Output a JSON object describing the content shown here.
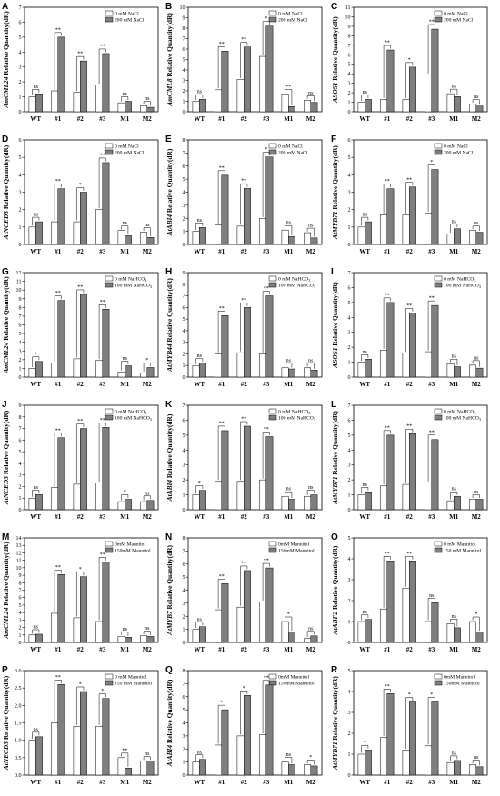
{
  "colors": {
    "control": "#ffffff",
    "treatment": "#7f7f7f",
    "axis": "#000000"
  },
  "categories": [
    "WT",
    "#1",
    "#2",
    "#3",
    "M1",
    "M2"
  ],
  "y_unit_label": "Relative Quantity(dR)",
  "chart_data": [
    {
      "panel": "A",
      "type": "bar",
      "gene": "AmCML24",
      "ylim": [
        0,
        7
      ],
      "yticks": [
        0,
        1,
        2,
        3,
        4,
        5,
        6,
        7
      ],
      "categories": [
        "WT",
        "#1",
        "#2",
        "#3",
        "M1",
        "M2"
      ],
      "series": [
        {
          "name": "0 mM NaCl",
          "values": [
            1.0,
            1.4,
            1.3,
            1.8,
            0.6,
            0.4
          ]
        },
        {
          "name": "200 mM NaCl",
          "values": [
            1.2,
            5.0,
            3.4,
            3.9,
            0.7,
            0.3
          ]
        }
      ],
      "significance": [
        "ns",
        "**",
        "**",
        "**",
        "ns",
        "ns"
      ]
    },
    {
      "panel": "B",
      "type": "bar",
      "gene": "AmCML8",
      "ylim": [
        0,
        10
      ],
      "yticks": [
        0,
        1,
        2,
        3,
        4,
        5,
        6,
        7,
        8,
        9,
        10
      ],
      "categories": [
        "WT",
        "#1",
        "#2",
        "#3",
        "M1",
        "M2"
      ],
      "series": [
        {
          "name": "0 mM NaCl",
          "values": [
            1.0,
            2.1,
            3.1,
            5.3,
            1.7,
            1.1
          ]
        },
        {
          "name": "200 mM NaCl",
          "values": [
            1.2,
            5.8,
            6.2,
            8.2,
            0.5,
            0.9
          ]
        }
      ],
      "significance": [
        "ns",
        "**",
        "**",
        "*",
        "**",
        "ns"
      ]
    },
    {
      "panel": "C",
      "type": "bar",
      "gene": "ASOS1",
      "ylim": [
        0,
        11
      ],
      "yticks": [
        0,
        1,
        2,
        3,
        4,
        5,
        6,
        7,
        8,
        9,
        10,
        11
      ],
      "categories": [
        "WT",
        "#1",
        "#2",
        "#3",
        "M1",
        "M2"
      ],
      "series": [
        {
          "name": "0 mM NaCl",
          "values": [
            1.0,
            1.3,
            1.3,
            3.9,
            1.9,
            0.8
          ]
        },
        {
          "name": "200 mM NaCl",
          "values": [
            1.3,
            6.5,
            4.7,
            8.7,
            1.6,
            0.6
          ]
        }
      ],
      "significance": [
        "ns",
        "**",
        "*",
        "**",
        "ns",
        "ns"
      ]
    },
    {
      "panel": "D",
      "type": "bar",
      "gene": "AtNCED3",
      "ylim": [
        0,
        6
      ],
      "yticks": [
        0,
        1,
        2,
        3,
        4,
        5,
        6
      ],
      "categories": [
        "WT",
        "#1",
        "#2",
        "#3",
        "M1",
        "M2"
      ],
      "series": [
        {
          "name": "0 mM NaCl",
          "values": [
            1.0,
            1.3,
            1.3,
            2.0,
            0.8,
            0.7
          ]
        },
        {
          "name": "200 mM NaCl",
          "values": [
            1.3,
            3.2,
            3.0,
            4.7,
            0.5,
            0.4
          ]
        }
      ],
      "significance": [
        "ns",
        "**",
        "*",
        "**",
        "ns",
        "ns"
      ]
    },
    {
      "panel": "E",
      "type": "bar",
      "gene": "AtABI4",
      "ylim": [
        0,
        8
      ],
      "yticks": [
        0,
        1,
        2,
        3,
        4,
        5,
        6,
        7,
        8
      ],
      "categories": [
        "WT",
        "#1",
        "#2",
        "#3",
        "M1",
        "M2"
      ],
      "series": [
        {
          "name": "0 mM NaCl",
          "values": [
            1.0,
            1.5,
            1.4,
            2.0,
            1.1,
            0.9
          ]
        },
        {
          "name": "200 mM NaCl",
          "values": [
            1.3,
            5.3,
            4.3,
            6.7,
            0.6,
            0.5
          ]
        }
      ],
      "significance": [
        "ns",
        "**",
        "**",
        "*",
        "ns",
        "ns"
      ]
    },
    {
      "panel": "F",
      "type": "bar",
      "gene": "AtMYB71",
      "ylim": [
        0,
        6
      ],
      "yticks": [
        0,
        1,
        2,
        3,
        4,
        5,
        6
      ],
      "categories": [
        "WT",
        "#1",
        "#2",
        "#3",
        "M1",
        "M2"
      ],
      "series": [
        {
          "name": "0 mM NaCl",
          "values": [
            1.0,
            1.7,
            1.7,
            1.8,
            0.6,
            0.8
          ]
        },
        {
          "name": "200 mM NaCl",
          "values": [
            1.3,
            3.2,
            3.3,
            4.3,
            0.9,
            0.7
          ]
        }
      ],
      "significance": [
        "ns",
        "**",
        "**",
        "*",
        "ns",
        "ns"
      ]
    },
    {
      "panel": "G",
      "type": "bar",
      "gene": "AmCML24",
      "ylim": [
        0,
        12
      ],
      "yticks": [
        0,
        1,
        2,
        3,
        4,
        5,
        6,
        7,
        8,
        9,
        10,
        11,
        12
      ],
      "categories": [
        "WT",
        "#1",
        "#2",
        "#3",
        "M1",
        "M2"
      ],
      "series": [
        {
          "name": "0 mM NaHCO3",
          "values": [
            1.0,
            1.6,
            2.1,
            1.9,
            0.6,
            0.5
          ]
        },
        {
          "name": "100 mM NaHCO3",
          "values": [
            1.8,
            8.8,
            9.5,
            7.8,
            1.3,
            1.1
          ]
        }
      ],
      "significance": [
        "*",
        "**",
        "**",
        "**",
        "ns",
        "*"
      ]
    },
    {
      "panel": "H",
      "type": "bar",
      "gene": "AtMYB44",
      "ylim": [
        0,
        9
      ],
      "yticks": [
        0,
        1,
        2,
        3,
        4,
        5,
        6,
        7,
        8,
        9
      ],
      "categories": [
        "WT",
        "#1",
        "#2",
        "#3",
        "M1",
        "M2"
      ],
      "series": [
        {
          "name": "0 mM NaHCO3",
          "values": [
            1.0,
            2.0,
            2.1,
            2.0,
            0.8,
            0.8
          ]
        },
        {
          "name": "100 mM NaHCO3",
          "values": [
            1.2,
            5.3,
            6.0,
            7.0,
            0.7,
            0.6
          ]
        }
      ],
      "significance": [
        "ns",
        "**",
        "**",
        "**",
        "ns",
        "ns"
      ]
    },
    {
      "panel": "I",
      "type": "bar",
      "gene": "ASOS1",
      "ylim": [
        0,
        7
      ],
      "yticks": [
        0,
        1,
        2,
        3,
        4,
        5,
        6,
        7
      ],
      "categories": [
        "WT",
        "#1",
        "#2",
        "#3",
        "M1",
        "M2"
      ],
      "series": [
        {
          "name": "0 mM NaHCO3",
          "values": [
            1.0,
            1.8,
            1.6,
            1.7,
            0.9,
            0.8
          ]
        },
        {
          "name": "100 mM NaHCO3",
          "values": [
            1.2,
            5.0,
            4.3,
            4.8,
            0.7,
            0.6
          ]
        }
      ],
      "significance": [
        "ns",
        "**",
        "**",
        "**",
        "ns",
        "ns"
      ]
    },
    {
      "panel": "J",
      "type": "bar",
      "gene": "AtNCED3",
      "ylim": [
        0,
        9
      ],
      "yticks": [
        0,
        1,
        2,
        3,
        4,
        5,
        6,
        7,
        8,
        9
      ],
      "categories": [
        "WT",
        "#1",
        "#2",
        "#3",
        "M1",
        "M2"
      ],
      "series": [
        {
          "name": "0 mM NaHCO3",
          "values": [
            1.0,
            1.9,
            2.2,
            2.3,
            0.7,
            0.7
          ]
        },
        {
          "name": "100 mM NaHCO3",
          "values": [
            1.3,
            6.2,
            7.0,
            7.1,
            0.9,
            0.8
          ]
        }
      ],
      "significance": [
        "ns",
        "**",
        "**",
        "**",
        "*",
        "ns"
      ]
    },
    {
      "panel": "K",
      "type": "bar",
      "gene": "AtABI4",
      "ylim": [
        0,
        7
      ],
      "yticks": [
        0,
        1,
        2,
        3,
        4,
        5,
        6,
        7
      ],
      "categories": [
        "WT",
        "#1",
        "#2",
        "#3",
        "M1",
        "M2"
      ],
      "series": [
        {
          "name": "0 mM NaHCO3",
          "values": [
            1.0,
            1.9,
            1.9,
            2.0,
            0.9,
            0.9
          ]
        },
        {
          "name": "100 mM NaHCO3",
          "values": [
            1.3,
            5.3,
            5.6,
            4.9,
            0.7,
            1.0
          ]
        }
      ],
      "significance": [
        "*",
        "**",
        "**",
        "**",
        "ns",
        "ns"
      ]
    },
    {
      "panel": "L",
      "type": "bar",
      "gene": "AtMYB71",
      "ylim": [
        0,
        7
      ],
      "yticks": [
        0,
        1,
        2,
        3,
        4,
        5,
        6,
        7
      ],
      "categories": [
        "WT",
        "#1",
        "#2",
        "#3",
        "M1",
        "M2"
      ],
      "series": [
        {
          "name": "0 mM NaHCO3",
          "values": [
            1.0,
            1.6,
            1.7,
            1.8,
            0.6,
            0.7
          ]
        },
        {
          "name": "100 mM NaHCO3",
          "values": [
            1.2,
            5.0,
            5.1,
            4.7,
            0.9,
            0.7
          ]
        }
      ],
      "significance": [
        "ns",
        "**",
        "**",
        "**",
        "ns",
        "ns"
      ]
    },
    {
      "panel": "M",
      "type": "bar",
      "gene": "AmCML24",
      "ylim": [
        0,
        14
      ],
      "yticks": [
        0,
        1,
        2,
        3,
        4,
        5,
        6,
        7,
        8,
        9,
        10,
        11,
        12,
        13,
        14
      ],
      "categories": [
        "WT",
        "#1",
        "#2",
        "#3",
        "M1",
        "M2"
      ],
      "series": [
        {
          "name": "0mM Mannitol",
          "values": [
            1.0,
            3.9,
            3.3,
            2.8,
            0.8,
            0.9
          ]
        },
        {
          "name": "150mM Mannitol",
          "values": [
            1.1,
            9.1,
            8.8,
            10.8,
            0.7,
            0.8
          ]
        }
      ],
      "significance": [
        "ns",
        "**",
        "*",
        "**",
        "ns",
        "ns"
      ]
    },
    {
      "panel": "N",
      "type": "bar",
      "gene": "AtMYB7",
      "ylim": [
        0,
        8
      ],
      "yticks": [
        0,
        1,
        2,
        3,
        4,
        5,
        6,
        7,
        8
      ],
      "categories": [
        "WT",
        "#1",
        "#2",
        "#3",
        "M1",
        "M2"
      ],
      "series": [
        {
          "name": "0mM Mannitol",
          "values": [
            1.0,
            2.5,
            2.7,
            3.1,
            1.6,
            0.3
          ]
        },
        {
          "name": "150mM Mannitol",
          "values": [
            1.2,
            4.5,
            5.5,
            5.7,
            0.8,
            0.5
          ]
        }
      ],
      "significance": [
        "ns",
        "**",
        "**",
        "**",
        "*",
        "ns"
      ]
    },
    {
      "panel": "O",
      "type": "bar",
      "gene": "AtABF2",
      "ylim": [
        0,
        5
      ],
      "yticks": [
        0,
        1,
        2,
        3,
        4,
        5
      ],
      "categories": [
        "WT",
        "#1",
        "#2",
        "#3",
        "M1",
        "M2"
      ],
      "series": [
        {
          "name": "0 mM Mannitol",
          "values": [
            1.0,
            1.6,
            2.6,
            1.0,
            0.9,
            1.0
          ]
        },
        {
          "name": "150 mM Mannitol",
          "values": [
            1.1,
            3.9,
            3.9,
            1.9,
            0.7,
            0.5
          ]
        }
      ],
      "significance": [
        "ns",
        "**",
        "**",
        "ns",
        "ns",
        "*"
      ]
    },
    {
      "panel": "P",
      "type": "bar",
      "gene": "AtNECD3",
      "ylim": [
        0,
        3
      ],
      "yticks": [
        0.0,
        0.5,
        1.0,
        1.5,
        2.0,
        2.5,
        3.0
      ],
      "categories": [
        "WT",
        "#1",
        "#2",
        "#3",
        "M1",
        "M2"
      ],
      "series": [
        {
          "name": "0 mM Mannitol",
          "values": [
            1.0,
            1.5,
            1.4,
            1.4,
            0.5,
            0.4
          ]
        },
        {
          "name": "150 mM Mannitol",
          "values": [
            1.1,
            2.6,
            2.4,
            2.2,
            0.2,
            0.4
          ]
        }
      ],
      "significance": [
        "ns",
        "**",
        "*",
        "*",
        "**",
        "ns"
      ]
    },
    {
      "panel": "Q",
      "type": "bar",
      "gene": "AtABI4",
      "ylim": [
        0,
        8
      ],
      "yticks": [
        0,
        1,
        2,
        3,
        4,
        5,
        6,
        7,
        8
      ],
      "categories": [
        "WT",
        "#1",
        "#2",
        "#3",
        "M1",
        "M2"
      ],
      "series": [
        {
          "name": "0mM Mannitol",
          "values": [
            1.0,
            2.3,
            3.0,
            3.1,
            1.0,
            0.8
          ]
        },
        {
          "name": "150mM Mannitol",
          "values": [
            1.2,
            5.0,
            6.1,
            6.9,
            0.8,
            0.7
          ]
        }
      ],
      "significance": [
        "ns",
        "*",
        "*",
        "**",
        "ns",
        "*"
      ]
    },
    {
      "panel": "R",
      "type": "bar",
      "gene": "AtMYB71",
      "ylim": [
        0,
        5
      ],
      "yticks": [
        0,
        1,
        2,
        3,
        4,
        5
      ],
      "categories": [
        "WT",
        "#1",
        "#2",
        "#3",
        "M1",
        "M2"
      ],
      "series": [
        {
          "name": "0mM Mannitol",
          "values": [
            1.0,
            1.8,
            1.2,
            1.4,
            0.6,
            0.5
          ]
        },
        {
          "name": "150mM Mannitol",
          "values": [
            1.2,
            3.9,
            3.5,
            3.5,
            0.7,
            0.4
          ]
        }
      ],
      "significance": [
        "*",
        "**",
        "*",
        "*",
        "ns",
        "ns"
      ]
    }
  ]
}
